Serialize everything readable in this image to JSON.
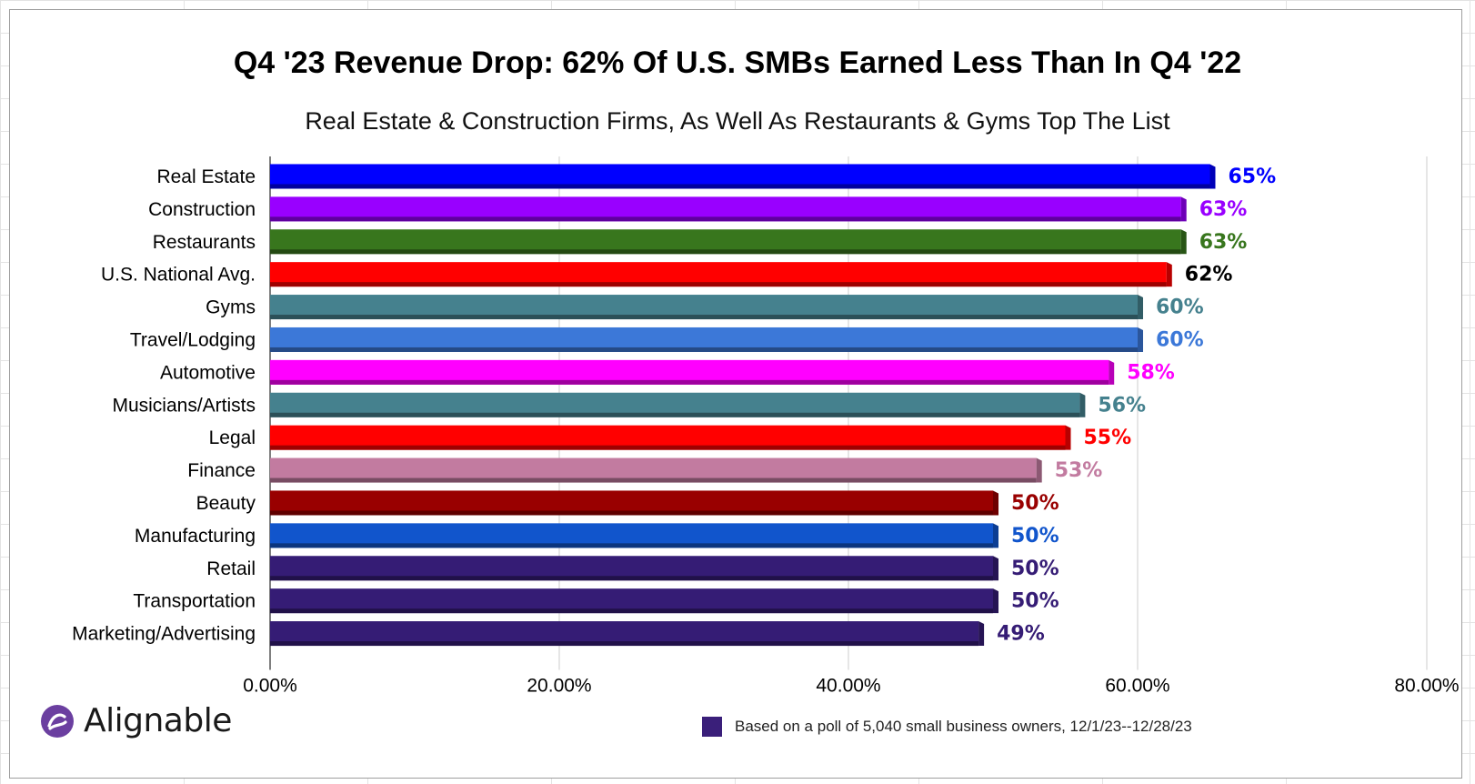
{
  "chart_data": {
    "type": "bar",
    "orientation": "horizontal",
    "title": "Q4 '23 Revenue Drop: 62% Of U.S. SMBs Earned Less Than In Q4 '22",
    "subtitle": "Real Estate & Construction Firms, As Well As Restaurants & Gyms Top The List",
    "categories": [
      "Real Estate",
      "Construction",
      "Restaurants",
      "U.S. National Avg.",
      "Gyms",
      "Travel/Lodging",
      "Automotive",
      "Musicians/Artists",
      "Legal",
      "Finance",
      "Beauty",
      "Manufacturing",
      "Retail",
      "Transportation",
      "Marketing/Advertising"
    ],
    "values": [
      65,
      63,
      63,
      62,
      60,
      60,
      58,
      56,
      55,
      53,
      50,
      50,
      50,
      50,
      49
    ],
    "data_labels": [
      "65%",
      "63%",
      "63%",
      "62%",
      "60%",
      "60%",
      "58%",
      "56%",
      "55%",
      "53%",
      "50%",
      "50%",
      "50%",
      "50%",
      "49%"
    ],
    "colors": [
      "#0000ff",
      "#9900ff",
      "#38761d",
      "#ff0000",
      "#45818e",
      "#3c78d8",
      "#ff00ff",
      "#45818e",
      "#ff0000",
      "#c27ba0",
      "#990000",
      "#1155cc",
      "#351c75",
      "#351c75",
      "#351c75"
    ],
    "label_colors": [
      "#0000ff",
      "#9900ff",
      "#38761d",
      "#000000",
      "#45818e",
      "#3c78d8",
      "#ff00ff",
      "#45818e",
      "#ff0000",
      "#c27ba0",
      "#990000",
      "#1155cc",
      "#351c75",
      "#351c75",
      "#351c75"
    ],
    "xlim": [
      0,
      80
    ],
    "xticks": [
      "0.00%",
      "20.00%",
      "40.00%",
      "60.00%",
      "80.00%"
    ],
    "xtick_values": [
      0,
      20,
      40,
      60,
      80
    ],
    "grid": "vertical",
    "legend": {
      "label": "Based on a poll of 5,040 small business owners, 12/1/23--12/28/23",
      "color": "#3a1f7a",
      "position": "bottom"
    }
  },
  "logo": {
    "text": "Alignable",
    "icon": "alignable-logo-icon",
    "color": "#6b3fa0"
  }
}
